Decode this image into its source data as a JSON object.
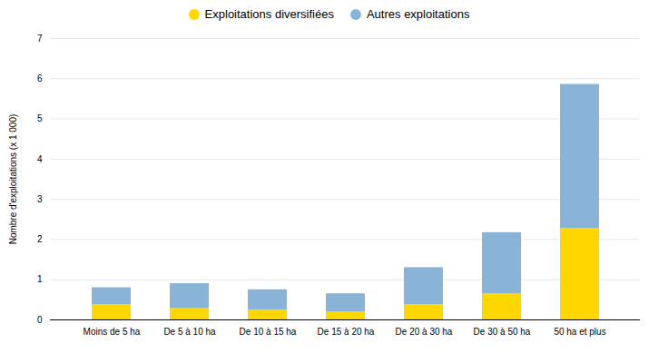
{
  "chart_data": {
    "type": "bar",
    "stacked": true,
    "categories": [
      "Moins de 5 ha",
      "De 5 à 10 ha",
      "De 10 à 15 ha",
      "De 15 à 20 ha",
      "De 20 à 30 ha",
      "De 30 à 50 ha",
      "50 ha et plus"
    ],
    "series": [
      {
        "name": "Exploitations diversifiées",
        "color": "#FFD700",
        "values": [
          0.38,
          0.28,
          0.25,
          0.2,
          0.38,
          0.65,
          2.28
        ]
      },
      {
        "name": "Autres exploitations",
        "color": "#89B4D8",
        "values": [
          0.42,
          0.62,
          0.5,
          0.45,
          0.92,
          1.52,
          3.58
        ]
      }
    ],
    "ylabel": "Nombre d'exploitations (x 1 000)",
    "ylim": [
      0,
      7
    ],
    "yticks": [
      0,
      1,
      2,
      3,
      4,
      5,
      6,
      7
    ],
    "grid": true,
    "legend": "top"
  }
}
